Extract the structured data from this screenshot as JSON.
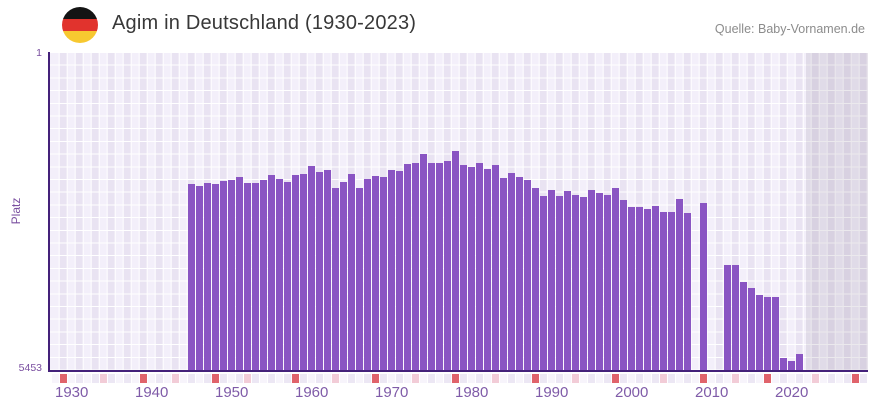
{
  "header": {
    "title": "Agim in Deutschland (1930-2023)",
    "source": "Quelle: Baby-Vornamen.de",
    "flag_icon": "germany-flag"
  },
  "chart_data": {
    "type": "bar",
    "title": "Agim in Deutschland (1930-2023)",
    "xlabel": "",
    "ylabel": "Platz",
    "y_top_label": "1",
    "y_bottom_label": "5453",
    "ylim": [
      1,
      5453
    ],
    "y_axis_inverted": true,
    "grid": true,
    "legend": "none",
    "bar_color": "#8a55c3",
    "axis_color": "#44217a",
    "tick_label_color": "#7f5ba8",
    "x_ticks": [
      1930,
      1940,
      1950,
      1960,
      1970,
      1980,
      1990,
      2000,
      2010,
      2020
    ],
    "x_range": [
      1928,
      2029
    ],
    "start_year": 1930,
    "end_year": 2023,
    "ranks": [
      null,
      null,
      null,
      null,
      null,
      null,
      null,
      null,
      null,
      null,
      null,
      null,
      null,
      null,
      null,
      2250,
      2290,
      2230,
      2250,
      2200,
      2180,
      2130,
      2230,
      2240,
      2190,
      2100,
      2160,
      2220,
      2100,
      2090,
      1950,
      2045,
      2015,
      2320,
      2215,
      2075,
      2315,
      2160,
      2120,
      2130,
      2005,
      2035,
      1905,
      1885,
      1740,
      1895,
      1885,
      1855,
      1680,
      1935,
      1965,
      1900,
      2000,
      1935,
      2155,
      2065,
      2140,
      2190,
      2315,
      2460,
      2350,
      2460,
      2380,
      2440,
      2485,
      2350,
      2415,
      2440,
      2330,
      2525,
      2645,
      2655,
      2685,
      2625,
      2730,
      2730,
      2510,
      2745,
      null,
      2585,
      null,
      null,
      3640,
      3640,
      3945,
      4040,
      4160,
      4200,
      4200,
      5250,
      5295,
      5180,
      null,
      null
    ],
    "no_data_shade_from_year": 2022,
    "timeline_strip": {
      "red_color": "#e0636b",
      "pink_color": "#f2ccd7",
      "red_years": [
        1929,
        1939,
        1948,
        1958,
        1968,
        1978,
        1988,
        1998,
        2009,
        2017,
        2028
      ],
      "pink_years": [
        1934,
        1943,
        1952,
        1963,
        1973,
        1983,
        1993,
        2004,
        2013,
        2023
      ]
    }
  }
}
